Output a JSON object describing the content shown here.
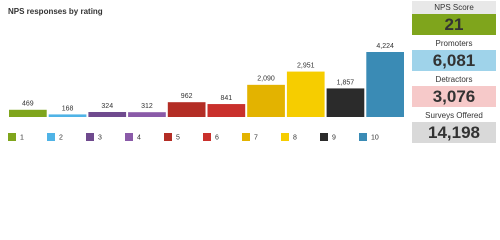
{
  "chart_data": {
    "type": "bar",
    "title": "NPS responses by rating",
    "categories": [
      "1",
      "2",
      "3",
      "4",
      "5",
      "6",
      "7",
      "8",
      "9",
      "10"
    ],
    "values": [
      469,
      168,
      324,
      312,
      962,
      841,
      2090,
      2951,
      1857,
      4224
    ],
    "value_labels": [
      "469",
      "168",
      "324",
      "312",
      "962",
      "841",
      "2,090",
      "2,951",
      "1,857",
      "4,224"
    ],
    "colors": [
      "#7fa51c",
      "#4fb3e6",
      "#6f4a8e",
      "#8a5aa8",
      "#b32d25",
      "#c9302c",
      "#e3b300",
      "#f6cd00",
      "#2b2b2b",
      "#3a8bb5"
    ]
  },
  "kpis": [
    {
      "label": "NPS Score",
      "value": "21",
      "color": "#7fa51c",
      "text_color": "#ffffff"
    },
    {
      "label": "Promoters",
      "value": "6,081",
      "color": "#9fd3ea",
      "text_color": "#2a6f94"
    },
    {
      "label": "Detractors",
      "value": "3,076",
      "color": "#f6c9c9",
      "text_color": "#555555"
    },
    {
      "label": "Surveys Offered",
      "value": "14,198",
      "color": "#d9d9d9",
      "text_color": "#444444"
    }
  ]
}
